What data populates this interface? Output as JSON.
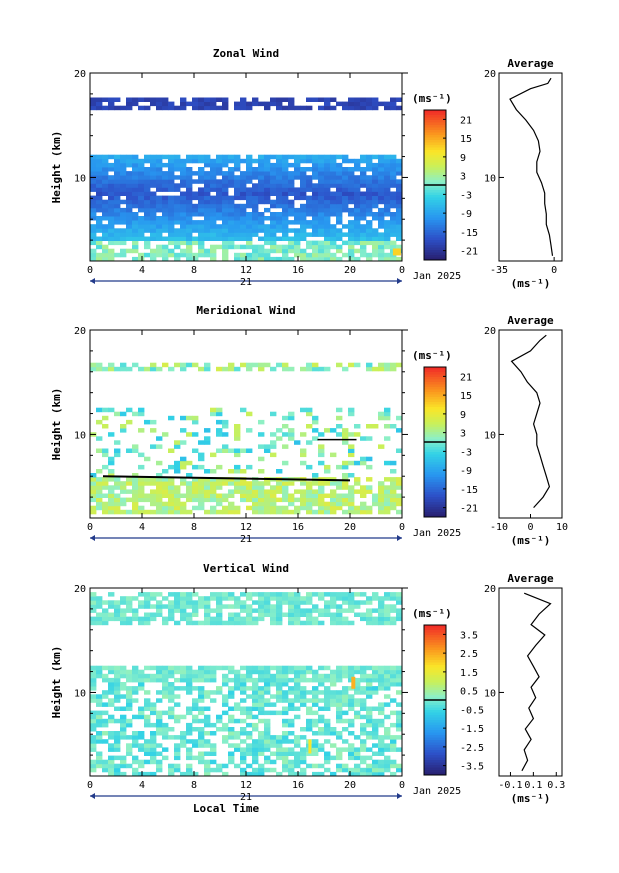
{
  "chart_data": [
    {
      "type": "heatmap",
      "title": "Zonal Wind",
      "ylabel": "Height (km)",
      "xlabel": "",
      "x_ticks": [
        "0",
        "4",
        "8",
        "12",
        "16",
        "20",
        "0"
      ],
      "y_ticks": [
        "20",
        "10"
      ],
      "xlim": [
        0,
        24
      ],
      "ylim": [
        2,
        20
      ],
      "date_day": "21",
      "date_month": "Jan 2025",
      "colorbar": {
        "unit": "(ms⁻¹)",
        "ticks": [
          "21",
          "15",
          "9",
          "3",
          "-3",
          "-9",
          "-15",
          "-21"
        ],
        "range": [
          -24,
          24
        ]
      },
      "profile": {
        "title": "Average",
        "unit": "(ms⁻¹)",
        "x_ticks": [
          "-35",
          "0"
        ],
        "xlim": [
          -35,
          5
        ],
        "y_ticks": [
          "20",
          "10"
        ],
        "h": [
          2.5,
          3.5,
          4.5,
          5.5,
          6.5,
          7.5,
          8.5,
          9.5,
          10.5,
          11.5,
          12.5,
          13.5,
          14.5,
          15.5,
          16.5,
          17.5,
          18.5,
          19.0,
          19.5
        ],
        "v": [
          -1,
          -2,
          -3,
          -5,
          -5,
          -6,
          -6,
          -8,
          -11,
          -11,
          -9,
          -10,
          -13,
          -18,
          -24,
          -28,
          -15,
          -4,
          -2
        ]
      }
    },
    {
      "type": "heatmap",
      "title": "Meridional Wind",
      "ylabel": "Height (km)",
      "xlabel": "",
      "x_ticks": [
        "0",
        "4",
        "8",
        "12",
        "16",
        "20",
        "0"
      ],
      "y_ticks": [
        "20",
        "10"
      ],
      "xlim": [
        0,
        24
      ],
      "ylim": [
        2,
        20
      ],
      "date_day": "21",
      "date_month": "Jan 2025",
      "colorbar": {
        "unit": "(ms⁻¹)",
        "ticks": [
          "21",
          "15",
          "9",
          "3",
          "-3",
          "-9",
          "-15",
          "-21"
        ],
        "range": [
          -24,
          24
        ]
      },
      "profile": {
        "title": "Average",
        "unit": "(ms⁻¹)",
        "x_ticks": [
          "-10",
          "0",
          "10"
        ],
        "xlim": [
          -10,
          10
        ],
        "y_ticks": [
          "20",
          "10"
        ],
        "h": [
          3,
          4,
          5,
          6,
          7,
          8,
          9,
          10,
          11,
          12,
          13,
          14,
          15,
          16,
          17,
          18,
          19,
          19.5
        ],
        "v": [
          1,
          4,
          6,
          5,
          4,
          3,
          2,
          2,
          1,
          2,
          3,
          2,
          -1,
          -3,
          -6,
          0,
          3,
          5
        ]
      }
    },
    {
      "type": "heatmap",
      "title": "Vertical Wind",
      "ylabel": "Height (km)",
      "xlabel": "Local Time",
      "x_ticks": [
        "0",
        "4",
        "8",
        "12",
        "16",
        "20",
        "0"
      ],
      "y_ticks": [
        "20",
        "10"
      ],
      "xlim": [
        0,
        24
      ],
      "ylim": [
        2,
        20
      ],
      "date_day": "21",
      "date_month": "Jan 2025",
      "colorbar": {
        "unit": "(ms⁻¹)",
        "ticks": [
          "3.5",
          "2.5",
          "1.5",
          "0.5",
          "-0.5",
          "-1.5",
          "-2.5",
          "-3.5"
        ],
        "range": [
          -4,
          4
        ]
      },
      "profile": {
        "title": "Average",
        "unit": "(ms⁻¹)",
        "x_ticks": [
          "-0.1",
          "0.1",
          "0.3"
        ],
        "xlim": [
          -0.2,
          0.35
        ],
        "y_ticks": [
          "20",
          "10"
        ],
        "h": [
          2.5,
          3.5,
          4.5,
          5.5,
          6.5,
          7.5,
          8.5,
          9.5,
          10.5,
          11.5,
          12.5,
          13.5,
          14.5,
          15.5,
          16.5,
          17.5,
          18.5,
          19.5
        ],
        "v": [
          0.0,
          0.05,
          0.02,
          0.08,
          0.03,
          0.1,
          0.06,
          0.12,
          0.08,
          0.15,
          0.1,
          0.05,
          0.12,
          0.2,
          0.08,
          0.15,
          0.25,
          0.02
        ]
      }
    }
  ]
}
